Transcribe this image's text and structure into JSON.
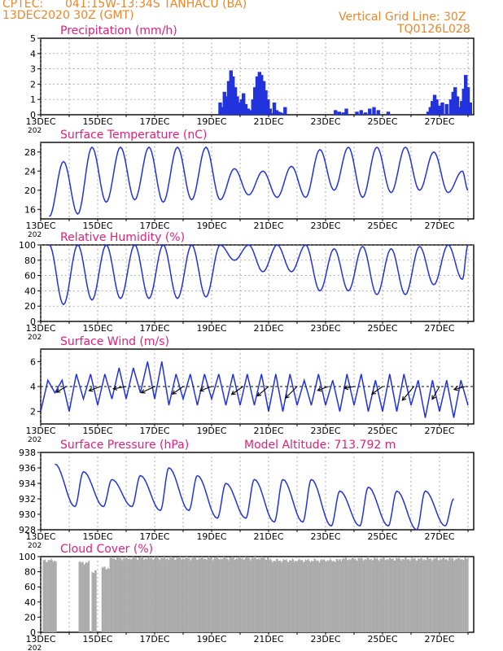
{
  "header": {
    "source": "CPTEC:",
    "location": "041:15W-13:34S   TANHACU (BA)",
    "run": "13DEC2020 30Z (GMT)",
    "grid_line": "Vertical Grid Line: 30Z",
    "code": "TQ0126L028"
  },
  "colors": {
    "header": "#e8872b",
    "panel_title": "#e0207a",
    "line": "#2233dd",
    "bar": "#2233dd",
    "cloud": "#aaaaaa",
    "arrow": "#000000"
  },
  "x_axis": {
    "tick_labels": [
      "13DEC",
      "15DEC",
      "17DEC",
      "19DEC",
      "21DEC",
      "23DEC",
      "25DEC",
      "27DEC"
    ],
    "year_label": "202"
  },
  "chart_data": [
    {
      "id": "precip",
      "type": "bar",
      "title": "Precipitation (mm/h)",
      "x_days": [
        6.3,
        6.37,
        6.45,
        6.53,
        6.6,
        6.68,
        6.75,
        6.83,
        6.9,
        6.98,
        7.05,
        7.12,
        7.2,
        7.28,
        7.35,
        7.45,
        7.52,
        7.6,
        7.68,
        7.75,
        7.83,
        7.9,
        7.98,
        8.05,
        8.12,
        8.2,
        8.28,
        8.35,
        8.42,
        8.5,
        8.58,
        10.35,
        10.48,
        10.62,
        10.73,
        11.1,
        11.25,
        11.4,
        11.55,
        11.7,
        11.85,
        12.2,
        13.6,
        13.68,
        13.75,
        13.83,
        13.9,
        13.98,
        14.05,
        14.1,
        14.25,
        14.4,
        14.48,
        14.55,
        14.63,
        14.7,
        14.78,
        14.85,
        14.92,
        15.0,
        15.08
      ],
      "values": [
        0.8,
        0.5,
        1.5,
        1.2,
        2.2,
        2.9,
        2.5,
        1.8,
        1.2,
        0.8,
        1.0,
        1.4,
        0.7,
        0.4,
        0.3,
        1.0,
        1.8,
        2.5,
        2.8,
        2.6,
        2.2,
        1.6,
        1.0,
        0.4,
        0.1,
        0.8,
        0.3,
        0.2,
        0.15,
        0.1,
        0.5,
        0.3,
        0.2,
        0.15,
        0.4,
        0.2,
        0.3,
        0.15,
        0.4,
        0.5,
        0.3,
        0.2,
        0.2,
        0.5,
        0.9,
        1.3,
        1.0,
        0.6,
        0.3,
        0.8,
        0.7,
        1.0,
        1.5,
        1.8,
        1.2,
        0.5,
        0.9,
        1.7,
        2.6,
        1.8,
        0.8
      ],
      "ylim": [
        0,
        5
      ],
      "yticks": [
        0,
        1,
        2,
        3,
        4,
        5
      ]
    },
    {
      "id": "temp",
      "type": "line",
      "title": "Surface Temperature (nC)",
      "days_min": [
        0.3,
        1.3,
        2.3,
        3.3,
        4.3,
        5.3,
        6.3,
        7.3,
        8.3,
        9.3,
        10.3,
        11.3,
        12.3,
        13.3,
        14.3,
        15.0
      ],
      "mins": [
        14.5,
        15.0,
        17.5,
        18.0,
        17.5,
        18.0,
        18.0,
        19.0,
        18.5,
        18.5,
        20.0,
        18.5,
        19.5,
        20.0,
        19.5,
        20.0
      ],
      "days_max": [
        0.8,
        1.8,
        2.8,
        3.8,
        4.8,
        5.8,
        6.8,
        7.8,
        8.8,
        9.8,
        10.8,
        11.8,
        12.8,
        13.8,
        14.8
      ],
      "maxs": [
        26.0,
        29.0,
        29.0,
        29.0,
        29.0,
        29.0,
        24.5,
        24.0,
        25.0,
        28.5,
        29.0,
        29.0,
        29.0,
        28.0,
        24.0
      ],
      "ylim": [
        14,
        30
      ],
      "yticks": [
        16,
        20,
        24,
        28
      ]
    },
    {
      "id": "rh",
      "type": "line",
      "title": "Relative Humidity (%)",
      "days_min": [
        0.8,
        1.8,
        2.8,
        3.8,
        4.8,
        5.8,
        6.8,
        7.8,
        8.8,
        9.8,
        10.8,
        11.8,
        12.8,
        13.8,
        14.8
      ],
      "mins": [
        22,
        28,
        30,
        30,
        30,
        32,
        80,
        65,
        65,
        40,
        40,
        35,
        35,
        48,
        55
      ],
      "days_max": [
        0.3,
        1.3,
        2.3,
        3.3,
        4.3,
        5.3,
        6.3,
        7.3,
        8.3,
        9.3,
        10.3,
        11.3,
        12.3,
        13.3,
        14.3,
        15.0
      ],
      "maxs": [
        100,
        100,
        100,
        100,
        100,
        100,
        100,
        100,
        100,
        100,
        95,
        98,
        95,
        98,
        100,
        100
      ],
      "ylim": [
        0,
        100
      ],
      "yticks": [
        0,
        20,
        40,
        60,
        80,
        100
      ]
    },
    {
      "id": "wind",
      "type": "line",
      "title": "Surface Wind (m/s)",
      "days": [
        0.0,
        0.25,
        0.5,
        0.75,
        1.0,
        1.25,
        1.5,
        1.75,
        2.0,
        2.25,
        2.5,
        2.75,
        3.0,
        3.25,
        3.5,
        3.75,
        4.0,
        4.25,
        4.5,
        4.75,
        5.0,
        5.25,
        5.5,
        5.75,
        6.0,
        6.25,
        6.5,
        6.75,
        7.0,
        7.25,
        7.5,
        7.75,
        8.0,
        8.25,
        8.5,
        8.75,
        9.0,
        9.25,
        9.5,
        9.75,
        10.0,
        10.25,
        10.5,
        10.75,
        11.0,
        11.25,
        11.5,
        11.75,
        12.0,
        12.25,
        12.5,
        12.75,
        13.0,
        13.25,
        13.5,
        13.75,
        14.0,
        14.25,
        14.5,
        14.75,
        15.0
      ],
      "speeds": [
        2.0,
        4.5,
        3.5,
        4.5,
        2.0,
        5.0,
        3.0,
        5.0,
        2.5,
        5.0,
        3.0,
        5.5,
        3.0,
        5.5,
        3.5,
        6.0,
        3.0,
        6.0,
        2.5,
        5.0,
        3.0,
        5.0,
        2.5,
        5.0,
        3.0,
        5.0,
        2.5,
        5.0,
        2.5,
        5.0,
        2.5,
        5.0,
        2.0,
        5.0,
        2.0,
        5.0,
        2.5,
        4.5,
        2.5,
        5.0,
        2.5,
        4.5,
        2.0,
        5.0,
        2.5,
        5.0,
        2.0,
        4.5,
        2.0,
        5.0,
        2.0,
        5.0,
        2.5,
        4.5,
        1.5,
        4.5,
        2.0,
        4.5,
        1.5,
        4.5,
        2.5
      ],
      "arrows_days": [
        0.9,
        2.1,
        3.0,
        4.0,
        5.0,
        6.0,
        7.1,
        8.0,
        9.0,
        10.1,
        11.0,
        12.0,
        13.1,
        14.0,
        14.9
      ],
      "arrows_angle": [
        210,
        200,
        190,
        205,
        215,
        200,
        215,
        220,
        225,
        200,
        190,
        215,
        230,
        240,
        195
      ],
      "arrows_len": [
        14,
        15,
        16,
        18,
        16,
        15,
        17,
        18,
        20,
        14,
        12,
        16,
        22,
        18,
        14
      ],
      "ylim": [
        1,
        7
      ],
      "yticks": [
        2,
        4,
        6
      ]
    },
    {
      "id": "press",
      "type": "line",
      "title": "Surface Pressure (hPa)",
      "extra_label": "Model Altitude: 713.792 m",
      "days_min": [
        1.2,
        2.2,
        3.2,
        4.2,
        5.2,
        6.2,
        7.2,
        8.2,
        9.2,
        10.2,
        11.2,
        12.2,
        13.2,
        14.2
      ],
      "mins": [
        931.0,
        931.0,
        931.0,
        930.5,
        930.5,
        929.5,
        929.5,
        929.0,
        929.0,
        928.5,
        928.5,
        928.5,
        928.0,
        928.5
      ],
      "days_max": [
        0.5,
        1.5,
        2.5,
        3.5,
        4.5,
        5.5,
        6.5,
        7.5,
        8.5,
        9.5,
        10.5,
        11.5,
        12.5,
        13.5,
        14.5
      ],
      "maxs": [
        936.5,
        935.5,
        934.5,
        935.0,
        936.0,
        935.0,
        934.0,
        934.5,
        934.5,
        934.5,
        933.0,
        933.5,
        933.0,
        933.0,
        932.0
      ],
      "ylim": [
        928,
        938
      ],
      "yticks": [
        928,
        930,
        932,
        934,
        936,
        938
      ]
    },
    {
      "id": "cloud",
      "type": "bar",
      "title": "Cloud Cover (%)",
      "segments": [
        {
          "start": 0.05,
          "end": 0.55,
          "level": 95
        },
        {
          "start": 1.3,
          "end": 1.7,
          "level": 92
        },
        {
          "start": 1.75,
          "end": 1.95,
          "level": 80
        },
        {
          "start": 2.1,
          "end": 2.4,
          "level": 85
        },
        {
          "start": 2.4,
          "end": 8.0,
          "level": 98
        },
        {
          "start": 8.0,
          "end": 10.5,
          "level": 95
        },
        {
          "start": 10.5,
          "end": 15.0,
          "level": 97
        }
      ],
      "ylim": [
        0,
        100
      ],
      "yticks": [
        0,
        20,
        40,
        60,
        80,
        100
      ]
    }
  ]
}
